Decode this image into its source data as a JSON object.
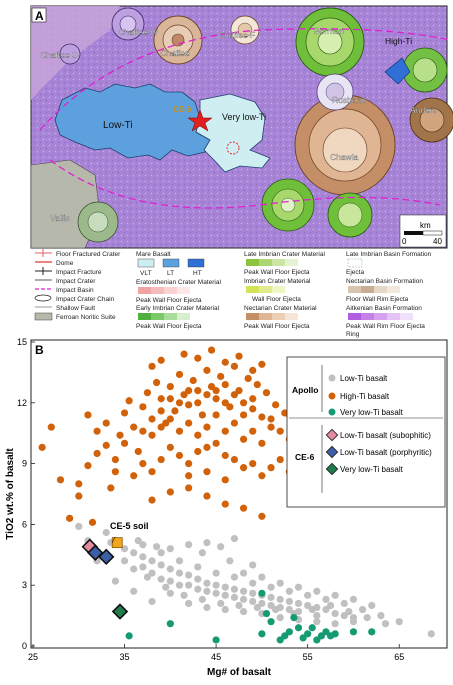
{
  "panel_a": {
    "label": "A",
    "map_labels": {
      "chaffee_w": "Chaffee W",
      "chaffee": "Chaffee",
      "chaffee_f": "Chaffee F",
      "chaffee_s": "Chaffee S",
      "borman": "Borman",
      "high_ti": "High-Ti",
      "low_ti": "Low-Ti",
      "very_low_ti": "Very low-Ti",
      "ce6": "CE-6",
      "rusband": "Rusband",
      "anders": "Anders",
      "chawla": "Chawla",
      "vallis": "Vallis"
    },
    "scale": {
      "unit": "km",
      "zero": "0",
      "max": "40"
    },
    "legend_left": [
      "Floor Fractured Crater",
      "Dome",
      "Impact Fracture",
      "Impact Crater",
      "Impact Basin",
      "Impact Crater Chain",
      "Shallow Fault",
      "Ferroan Noritic Suite"
    ],
    "legend_mid": {
      "mare_basalt": "Mare Basalt",
      "mare_labels": [
        "VLT",
        "LT",
        "HT"
      ],
      "eratosthenian": "Eratosthenian Crater Material",
      "eratosthenian_sub": "Peak Wall Floor Ejecta",
      "early_imbrian": "Early Imbrian Crater Material",
      "early_imbrian_sub": "Peak Wall Floor Ejecta"
    },
    "legend_right1": {
      "late_imbrian": "Late Imbrian Crater Material",
      "late_imbrian_sub": "Peak Wall Floor Ejecta",
      "imbrian": "Imbrian Crater Material",
      "imbrian_sub": "Wall Floor Ejecta",
      "nectarian": "Nectarian Crater Material",
      "nectarian_sub": "Peak Wall Floor Ejecta"
    },
    "legend_right2": {
      "late_imbrian_basin": "Late Imbrian Basin Formation",
      "ejecta": "Ejecta",
      "nectarian_basin": "Nectarian Basin Formation",
      "nectarian_basin_sub": "Floor Wall  Rim  Ejecta",
      "aitkenian": "Aitkenian Basin Formation",
      "aitkenian_sub": "Peak Wall Rim Floor Ejecta",
      "ring": "Ring"
    }
  },
  "panel_b": {
    "label": "B",
    "ce5_label": "CE-5 soil",
    "legend": {
      "apollo": "Apollo",
      "ce6": "CE-6",
      "items_apollo": [
        "Low-Ti basalt",
        "High-Ti basalt",
        "Very low-Ti basalt"
      ],
      "items_ce6": [
        "Low-Ti basalt (subophitic)",
        "Low-Ti basalt (porphyritic)",
        "Very low-Ti basalt"
      ]
    }
  },
  "colors": {
    "low_ti_grey": "#c0c0c0",
    "high_ti_orange": "#d2620a",
    "very_low_ti_green": "#159b74",
    "ce6_sub": "#e58aa0",
    "ce6_por": "#3d5fa8",
    "ce6_vlt": "#1f7c4c",
    "ce5": "#f0a51d",
    "impact_basin": "#e020d0"
  },
  "chart_data": {
    "type": "scatter",
    "xlabel": "Mg# of basalt",
    "ylabel": "TiO2 wt.% of basalt",
    "xlim": [
      25,
      70
    ],
    "ylim": [
      0,
      15
    ],
    "x_ticks": [
      "25",
      "35",
      "45",
      "55",
      "65"
    ],
    "y_ticks": [
      "0",
      "3",
      "6",
      "9",
      "12",
      "15"
    ],
    "series": [
      {
        "name": "Low-Ti basalt",
        "group": "Apollo",
        "color": "#c0c0c0",
        "points": [
          [
            33,
            5.6
          ],
          [
            33.5,
            5.1
          ],
          [
            34,
            5.2
          ],
          [
            35,
            4.8
          ],
          [
            36,
            4.6
          ],
          [
            37,
            4.4
          ],
          [
            38,
            4.2
          ],
          [
            39,
            4.0
          ],
          [
            40,
            3.8
          ],
          [
            41,
            3.6
          ],
          [
            42,
            3.5
          ],
          [
            43,
            3.3
          ],
          [
            44,
            3.1
          ],
          [
            45,
            3.0
          ],
          [
            46,
            2.9
          ],
          [
            47,
            2.8
          ],
          [
            48,
            2.7
          ],
          [
            49,
            2.6
          ],
          [
            50,
            2.5
          ],
          [
            51,
            2.4
          ],
          [
            52,
            2.3
          ],
          [
            53,
            2.2
          ],
          [
            54,
            2.1
          ],
          [
            55,
            2.0
          ],
          [
            56,
            1.9
          ],
          [
            57,
            1.8
          ],
          [
            58,
            1.6
          ],
          [
            59,
            1.5
          ],
          [
            60,
            1.4
          ],
          [
            36,
            3.8
          ],
          [
            38,
            3.6
          ],
          [
            40,
            3.2
          ],
          [
            42,
            3.0
          ],
          [
            44,
            2.7
          ],
          [
            46,
            2.5
          ],
          [
            48,
            2.3
          ],
          [
            50,
            2.1
          ],
          [
            52,
            1.9
          ],
          [
            54,
            1.7
          ],
          [
            56,
            1.5
          ],
          [
            37,
            5.0
          ],
          [
            39,
            4.6
          ],
          [
            41,
            4.2
          ],
          [
            43,
            3.9
          ],
          [
            45,
            3.6
          ],
          [
            47,
            3.4
          ],
          [
            49,
            3.1
          ],
          [
            51,
            2.9
          ],
          [
            53,
            2.7
          ],
          [
            55,
            2.5
          ],
          [
            57,
            2.3
          ],
          [
            59,
            2.1
          ],
          [
            61,
            1.8
          ],
          [
            63,
            1.5
          ],
          [
            65,
            1.2
          ],
          [
            68.5,
            0.6
          ],
          [
            30,
            5.9
          ],
          [
            31,
            5.2
          ],
          [
            32,
            4.2
          ],
          [
            34,
            3.2
          ],
          [
            36,
            2.7
          ],
          [
            38,
            2.2
          ],
          [
            40,
            2.6
          ],
          [
            42,
            2.1
          ],
          [
            44,
            1.9
          ],
          [
            46,
            1.8
          ],
          [
            48,
            1.7
          ],
          [
            50,
            1.6
          ],
          [
            52,
            1.4
          ],
          [
            54,
            1.3
          ],
          [
            56,
            1.2
          ],
          [
            58,
            1.1
          ],
          [
            60,
            1.2
          ],
          [
            47,
            5.3
          ],
          [
            45.5,
            4.9
          ],
          [
            43.5,
            4.6
          ],
          [
            46.5,
            4.2
          ],
          [
            49,
            4.0
          ],
          [
            40,
            4.8
          ],
          [
            42,
            5.0
          ],
          [
            44,
            5.1
          ],
          [
            38.5,
            4.9
          ],
          [
            36.5,
            5.2
          ],
          [
            37.5,
            3.4
          ],
          [
            39.5,
            2.9
          ],
          [
            41.5,
            2.5
          ],
          [
            43.5,
            2.3
          ],
          [
            45.5,
            2.1
          ],
          [
            47.5,
            2.0
          ],
          [
            49.5,
            1.9
          ],
          [
            51.5,
            1.8
          ],
          [
            53.5,
            1.6
          ],
          [
            55.5,
            1.8
          ],
          [
            57.5,
            2.0
          ],
          [
            59.5,
            1.7
          ],
          [
            61.5,
            1.4
          ],
          [
            63.5,
            1.1
          ],
          [
            48,
            3.6
          ],
          [
            50,
            3.4
          ],
          [
            52,
            3.1
          ],
          [
            54,
            2.9
          ],
          [
            56,
            2.7
          ],
          [
            58,
            2.5
          ],
          [
            60,
            2.3
          ],
          [
            62,
            2.0
          ],
          [
            35,
            4.2
          ],
          [
            37,
            3.9
          ],
          [
            39,
            3.3
          ],
          [
            41,
            3.0
          ],
          [
            43,
            2.8
          ],
          [
            45,
            2.6
          ],
          [
            47,
            2.4
          ],
          [
            49,
            2.2
          ],
          [
            51,
            2.0
          ],
          [
            53,
            1.8
          ]
        ]
      },
      {
        "name": "High-Ti basalt",
        "group": "Apollo",
        "color": "#d2620a",
        "points": [
          [
            26,
            9.8
          ],
          [
            27,
            10.8
          ],
          [
            28,
            8.2
          ],
          [
            29,
            6.3
          ],
          [
            30,
            7.4
          ],
          [
            31,
            8.9
          ],
          [
            31.5,
            6.1
          ],
          [
            32,
            9.5
          ],
          [
            33,
            11.0
          ],
          [
            33.5,
            7.8
          ],
          [
            34,
            9.2
          ],
          [
            34.5,
            10.4
          ],
          [
            35,
            11.5
          ],
          [
            35.5,
            12.1
          ],
          [
            36,
            10.8
          ],
          [
            36.5,
            9.6
          ],
          [
            37,
            11.8
          ],
          [
            37.5,
            12.5
          ],
          [
            38,
            11.2
          ],
          [
            38.5,
            13.0
          ],
          [
            39,
            12.2
          ],
          [
            39.5,
            11.0
          ],
          [
            40,
            12.8
          ],
          [
            40.5,
            11.6
          ],
          [
            41,
            13.4
          ],
          [
            41.5,
            12.4
          ],
          [
            42,
            11.9
          ],
          [
            42.5,
            13.1
          ],
          [
            43,
            12.6
          ],
          [
            43.5,
            11.4
          ],
          [
            44,
            13.6
          ],
          [
            44.5,
            12.8
          ],
          [
            45,
            12.2
          ],
          [
            45.5,
            13.3
          ],
          [
            46,
            12.9
          ],
          [
            46.5,
            11.8
          ],
          [
            47,
            13.8
          ],
          [
            47.5,
            12.6
          ],
          [
            48,
            12.0
          ],
          [
            48.5,
            13.2
          ],
          [
            49,
            11.7
          ],
          [
            49.5,
            12.9
          ],
          [
            50,
            11.3
          ],
          [
            50.5,
            12.5
          ],
          [
            51,
            10.8
          ],
          [
            51.5,
            11.9
          ],
          [
            52,
            10.6
          ],
          [
            52.5,
            11.5
          ],
          [
            53,
            10.2
          ],
          [
            54,
            11.0
          ],
          [
            55,
            10.4
          ],
          [
            56,
            9.4
          ],
          [
            57.5,
            9.6
          ],
          [
            59.5,
            8.4
          ],
          [
            38,
            10.4
          ],
          [
            39,
            10.8
          ],
          [
            40,
            11.2
          ],
          [
            41,
            10.6
          ],
          [
            42,
            11.0
          ],
          [
            43,
            10.4
          ],
          [
            44,
            10.8
          ],
          [
            45,
            11.4
          ],
          [
            46,
            10.6
          ],
          [
            47,
            11.0
          ],
          [
            48,
            10.2
          ],
          [
            49,
            10.6
          ],
          [
            50,
            10.0
          ],
          [
            38,
            13.8
          ],
          [
            39,
            14.1
          ],
          [
            41.5,
            14.4
          ],
          [
            43,
            14.2
          ],
          [
            44.5,
            14.6
          ],
          [
            46,
            14.0
          ],
          [
            47.5,
            14.3
          ],
          [
            49,
            13.6
          ],
          [
            50,
            13.9
          ],
          [
            36,
            8.4
          ],
          [
            37,
            9.0
          ],
          [
            38,
            8.6
          ],
          [
            39,
            9.2
          ],
          [
            40,
            9.8
          ],
          [
            41,
            9.4
          ],
          [
            42,
            9.0
          ],
          [
            43,
            9.6
          ],
          [
            44,
            9.8
          ],
          [
            45,
            10.0
          ],
          [
            46,
            9.4
          ],
          [
            47,
            9.2
          ],
          [
            48,
            8.8
          ],
          [
            49,
            9.0
          ],
          [
            50,
            8.4
          ],
          [
            51,
            8.8
          ],
          [
            52,
            9.2
          ],
          [
            53,
            8.6
          ],
          [
            54,
            9.0
          ],
          [
            40,
            7.6
          ],
          [
            42,
            7.8
          ],
          [
            44,
            7.4
          ],
          [
            46,
            7.0
          ],
          [
            48,
            6.8
          ],
          [
            50,
            6.4
          ],
          [
            46,
            8.2
          ],
          [
            44,
            8.6
          ],
          [
            42,
            8.4
          ],
          [
            38,
            7.2
          ],
          [
            48,
            11.4
          ],
          [
            45,
            12.6
          ],
          [
            43,
            12.0
          ],
          [
            41,
            12.0
          ],
          [
            39,
            11.6
          ],
          [
            37,
            10.6
          ],
          [
            35,
            10.0
          ],
          [
            44,
            12.4
          ],
          [
            46,
            12.0
          ],
          [
            42,
            12.6
          ],
          [
            40,
            12.2
          ],
          [
            47,
            12.4
          ],
          [
            49,
            12.2
          ],
          [
            51,
            11.2
          ],
          [
            53,
            11.4
          ],
          [
            34,
            8.6
          ],
          [
            33,
            9.9
          ],
          [
            32,
            10.6
          ],
          [
            31,
            11.4
          ],
          [
            30,
            8.0
          ]
        ]
      },
      {
        "name": "Very low-Ti basalt",
        "group": "Apollo",
        "color": "#159b74",
        "points": [
          [
            35.5,
            0.5
          ],
          [
            40,
            1.1
          ],
          [
            45,
            0.3
          ],
          [
            50,
            0.6
          ],
          [
            50.5,
            1.6
          ],
          [
            52,
            0.3
          ],
          [
            53,
            0.7
          ],
          [
            54,
            0.9
          ],
          [
            54.5,
            0.4
          ],
          [
            55,
            0.6
          ],
          [
            56,
            0.3
          ],
          [
            57,
            0.7
          ],
          [
            57.5,
            0.5
          ],
          [
            58,
            0.6
          ],
          [
            60,
            0.7
          ],
          [
            62,
            0.7
          ],
          [
            51,
            1.2
          ],
          [
            53.5,
            1.4
          ],
          [
            55.5,
            0.9
          ],
          [
            56.5,
            0.5
          ],
          [
            50,
            2.6
          ],
          [
            52.5,
            0.5
          ]
        ]
      },
      {
        "name": "Low-Ti basalt (subophitic)",
        "group": "CE-6",
        "color": "#e58aa0",
        "points": [
          [
            31.2,
            4.9
          ]
        ]
      },
      {
        "name": "Low-Ti basalt (porphyritic)",
        "group": "CE-6",
        "color": "#3d5fa8",
        "points": [
          [
            31.8,
            4.6
          ],
          [
            33.0,
            4.4
          ]
        ]
      },
      {
        "name": "Very low-Ti basalt",
        "group": "CE-6",
        "color": "#1f7c4c",
        "points": [
          [
            34.5,
            1.7
          ]
        ]
      },
      {
        "name": "CE-5 soil",
        "group": "CE-5",
        "color": "#f0a51d",
        "points": [
          [
            34.2,
            5.1
          ]
        ]
      }
    ]
  }
}
